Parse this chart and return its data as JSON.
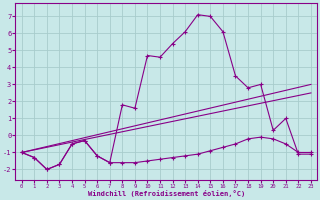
{
  "background_color": "#c8e8e8",
  "grid_color": "#a8cccc",
  "line_color": "#880088",
  "xlabel": "Windchill (Refroidissement éolien,°C)",
  "ylim": [
    -2.6,
    7.8
  ],
  "xlim": [
    -0.5,
    23.5
  ],
  "yticks": [
    -2,
    -1,
    0,
    1,
    2,
    3,
    4,
    5,
    6,
    7
  ],
  "xticks": [
    0,
    1,
    2,
    3,
    4,
    5,
    6,
    7,
    8,
    9,
    10,
    11,
    12,
    13,
    14,
    15,
    16,
    17,
    18,
    19,
    20,
    21,
    22,
    23
  ],
  "curve1_x": [
    0,
    1,
    2,
    3,
    4,
    5,
    6,
    7,
    8,
    9,
    10,
    11,
    12,
    13,
    14,
    15,
    16,
    17,
    18,
    19,
    20,
    21,
    22,
    23
  ],
  "curve1_y": [
    -1.0,
    -1.3,
    -2.0,
    -1.7,
    -0.5,
    -0.3,
    -1.2,
    -1.6,
    1.8,
    1.6,
    4.7,
    4.6,
    5.4,
    6.1,
    7.1,
    7.0,
    6.1,
    3.5,
    2.8,
    3.0,
    0.3,
    1.0,
    -1.1,
    -1.1
  ],
  "line1_x": [
    0,
    23
  ],
  "line1_y": [
    -1.0,
    3.0
  ],
  "line2_x": [
    0,
    23
  ],
  "line2_y": [
    -1.0,
    2.5
  ],
  "curve2_x": [
    0,
    1,
    2,
    3,
    4,
    5,
    6,
    7,
    8,
    9,
    10,
    11,
    12,
    13,
    14,
    15,
    16,
    17,
    18,
    19,
    20,
    21,
    22,
    23
  ],
  "curve2_y": [
    -1.0,
    -1.3,
    -2.0,
    -1.7,
    -0.5,
    -0.3,
    -1.2,
    -1.6,
    -1.6,
    -1.6,
    -1.5,
    -1.4,
    -1.3,
    -1.2,
    -1.1,
    -0.9,
    -0.7,
    -0.5,
    -0.2,
    -0.1,
    -0.2,
    -0.5,
    -1.0,
    -1.0
  ]
}
